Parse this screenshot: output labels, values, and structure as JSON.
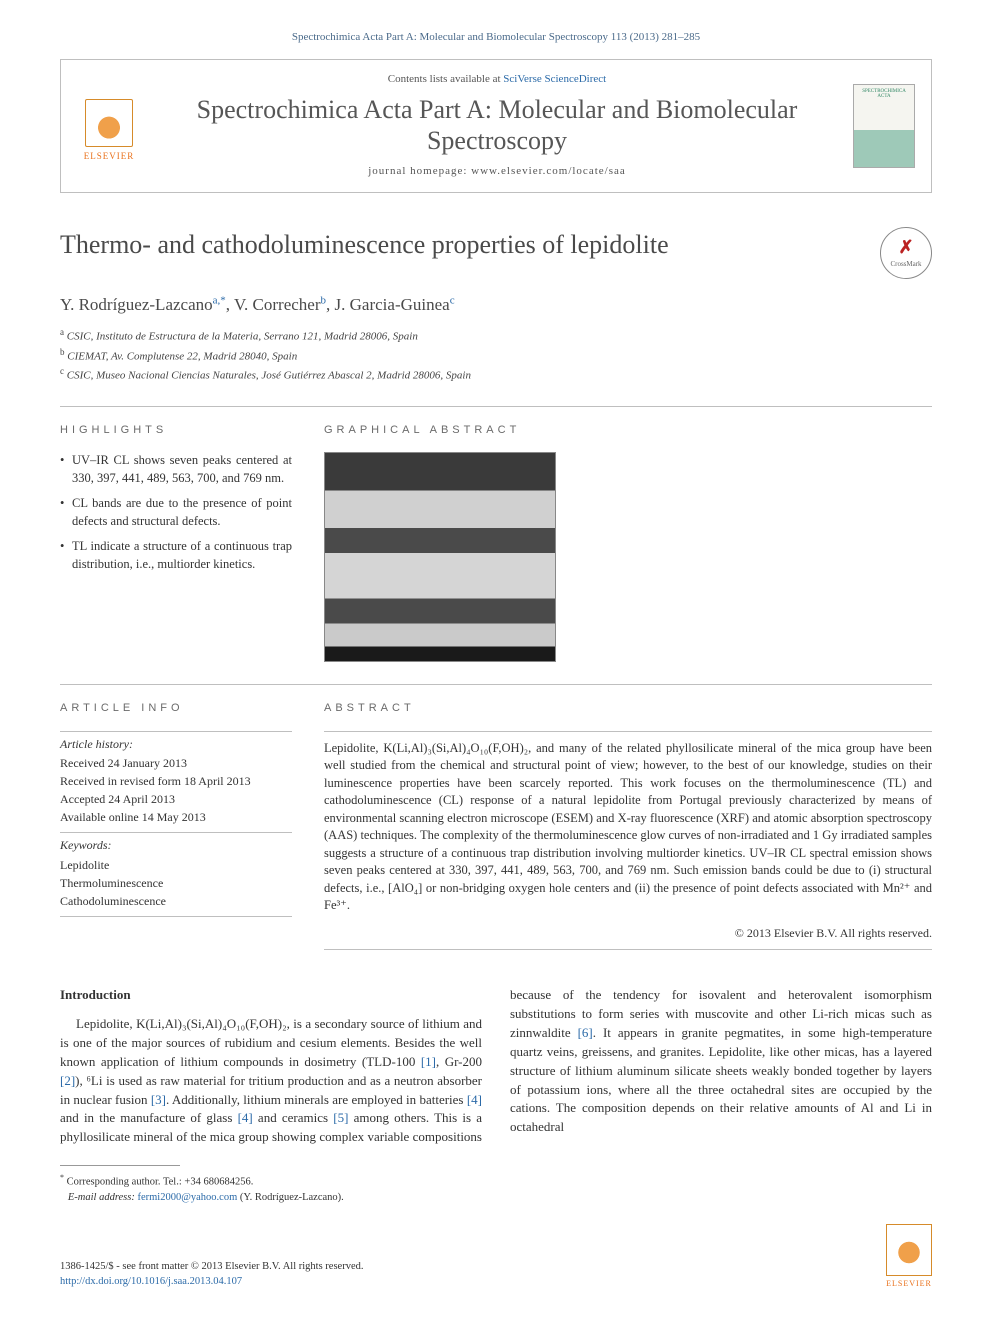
{
  "header": {
    "citation": "Spectrochimica Acta Part A: Molecular and Biomolecular Spectroscopy 113 (2013) 281–285",
    "contents_prefix": "Contents lists available at ",
    "contents_link": "SciVerse ScienceDirect",
    "journal_name": "Spectrochimica Acta Part A: Molecular and Biomolecular Spectroscopy",
    "homepage_prefix": "journal homepage: ",
    "homepage_url": "www.elsevier.com/locate/saa",
    "elsevier_label": "ELSEVIER",
    "cover_label": "SPECTROCHIMICA ACTA"
  },
  "title": "Thermo- and cathodoluminescence properties of lepidolite",
  "crossmark_label": "CrossMark",
  "authors_html": "Y. Rodríguez-Lazcano",
  "authors_sup1": "a,*",
  "authors_2": ", V. Correcher",
  "authors_sup2": "b",
  "authors_3": ", J. Garcia-Guinea",
  "authors_sup3": "c",
  "affiliations": [
    {
      "sup": "a",
      "text": "CSIC, Instituto de Estructura de la Materia, Serrano 121, Madrid 28006, Spain"
    },
    {
      "sup": "b",
      "text": "CIEMAT, Av. Complutense 22, Madrid 28040, Spain"
    },
    {
      "sup": "c",
      "text": "CSIC, Museo Nacional Ciencias Naturales, José Gutiérrez Abascal 2, Madrid 28006, Spain"
    }
  ],
  "section_labels": {
    "highlights": "HIGHLIGHTS",
    "graphical_abstract": "GRAPHICAL ABSTRACT",
    "article_info": "ARTICLE INFO",
    "abstract": "ABSTRACT",
    "introduction": "Introduction"
  },
  "highlights": [
    "UV–IR CL shows seven peaks centered at 330, 397, 441, 489, 563, 700, and 769 nm.",
    "CL bands are due to the presence of point defects and structural defects.",
    "TL indicate a structure of a continuous trap distribution, i.e., multiorder kinetics."
  ],
  "article_info": {
    "history_heading": "Article history:",
    "received": "Received 24 January 2013",
    "revised": "Received in revised form 18 April 2013",
    "accepted": "Accepted 24 April 2013",
    "online": "Available online 14 May 2013",
    "keywords_heading": "Keywords:",
    "keywords": [
      "Lepidolite",
      "Thermoluminescence",
      "Cathodoluminescence"
    ]
  },
  "abstract_text": "Lepidolite, K(Li,Al)₃(Si,Al)₄O₁₀(F,OH)₂, and many of the related phyllosilicate mineral of the mica group have been well studied from the chemical and structural point of view; however, to the best of our knowledge, studies on their luminescence properties have been scarcely reported. This work focuses on the thermoluminescence (TL) and cathodoluminescence (CL) response of a natural lepidolite from Portugal previously characterized by means of environmental scanning electron microscope (ESEM) and X-ray fluorescence (XRF) and atomic absorption spectroscopy (AAS) techniques. The complexity of the thermoluminescence glow curves of non-irradiated and 1 Gy irradiated samples suggests a structure of a continuous trap distribution involving multiorder kinetics. UV–IR CL spectral emission shows seven peaks centered at 330, 397, 441, 489, 563, 700, and 769 nm. Such emission bands could be due to (i) structural defects, i.e., [AlO₄] or non-bridging oxygen hole centers and (ii) the presence of point defects associated with Mn²⁺ and Fe³⁺.",
  "copyright": "© 2013 Elsevier B.V. All rights reserved.",
  "intro_para1": "Lepidolite, K(Li,Al)₃(Si,Al)₄O₁₀(F,OH)₂, is a secondary source of lithium and is one of the major sources of rubidium and cesium elements. Besides the well known application of lithium compounds in dosimetry (TLD-100 [1], Gr-200 [2]), ⁶Li is used as raw material for tritium production and as a neutron absorber in nuclear fusion [3]. Additionally, lithium minerals are employed in batteries [4] and in the manufacture of glass [4] and ceramics [5] among others. This is a phyllosilicate mineral of the mica group showing complex variable compositions because of the tendency for isovalent and heterovalent isomorphism substitutions to form series with muscovite and other Li-rich micas such as zinnwaldite [6]. It appears in granite pegmatites, in some high-temperature quartz veins, greissens, and granites. Lepidolite, like other micas, has a layered structure of lithium aluminum silicate sheets weakly bonded together by layers of potassium ions, where all the three octahedral sites are occupied by the cations. The composition depends on their relative amounts of Al and Li in octahedral",
  "footnote": {
    "corresponding": "Corresponding author. Tel.: +34 680684256.",
    "email_label": "E-mail address:",
    "email": "fermi2000@yahoo.com",
    "email_author": "(Y. Rodríguez-Lazcano)."
  },
  "footer": {
    "line1": "1386-1425/$ - see front matter © 2013 Elsevier B.V. All rights reserved.",
    "doi": "http://dx.doi.org/10.1016/j.saa.2013.04.107",
    "elsevier_label": "ELSEVIER"
  },
  "colors": {
    "link": "#2b6aa8",
    "text": "#333333",
    "heading_gray": "#4a4a4a",
    "border": "#bfbfbf",
    "elsevier_orange": "#e9711c"
  }
}
